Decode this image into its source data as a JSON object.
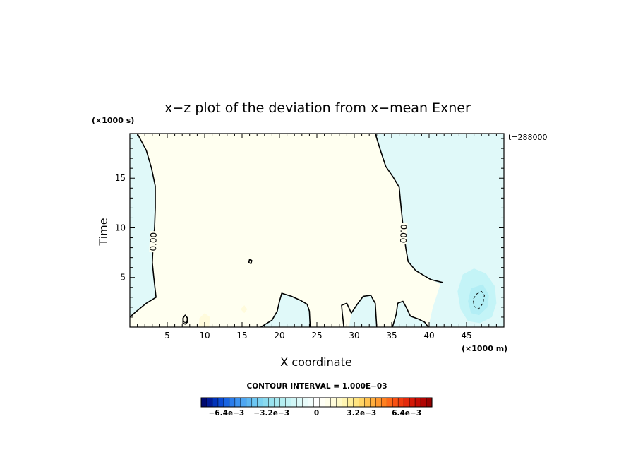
{
  "chart_data": {
    "type": "contour",
    "title": "x−z plot of the deviation from x−mean Exner",
    "xlabel": "X coordinate",
    "ylabel": "Time",
    "x_unit": "(×1000 m)",
    "y_unit": "(×1000 s)",
    "time_label": "t=288000",
    "xlim": [
      0,
      50
    ],
    "ylim": [
      0,
      19.5
    ],
    "x_ticks": [
      5,
      10,
      15,
      20,
      25,
      30,
      35,
      40,
      45
    ],
    "y_ticks": [
      5,
      10,
      15
    ],
    "contour_interval_text": "CONTOUR INTERVAL = 1.000E−03",
    "contour_labels": [
      {
        "text": "0.00",
        "x": 3.2,
        "y": 8.6,
        "angle": -88
      },
      {
        "text": "0.00",
        "x": 36.5,
        "y": 9.4,
        "angle": 92
      },
      {
        "text": "0",
        "x": 7.4,
        "y": 0.7,
        "angle": 0
      },
      {
        "text": "0",
        "x": 16.1,
        "y": 6.6,
        "angle": 0
      }
    ],
    "contours": [
      {
        "value": 0,
        "points": [
          [
            1,
            19.5
          ],
          [
            2.2,
            17.8
          ],
          [
            2.9,
            16
          ],
          [
            3.4,
            14.2
          ],
          [
            3.4,
            12
          ],
          [
            3.3,
            10
          ],
          [
            3.1,
            8.3
          ],
          [
            3,
            6.5
          ],
          [
            3.2,
            5
          ],
          [
            3.5,
            3
          ],
          [
            2.2,
            2.4
          ],
          [
            0.9,
            1.6
          ],
          [
            0,
            1
          ]
        ]
      },
      {
        "value": 0,
        "points": [
          [
            32.8,
            19.5
          ],
          [
            33.5,
            17.8
          ],
          [
            34.2,
            16.2
          ],
          [
            35.2,
            15.1
          ],
          [
            36,
            14.1
          ],
          [
            36.2,
            12.5
          ],
          [
            36.4,
            11
          ],
          [
            36.6,
            9.5
          ],
          [
            36.9,
            7.9
          ],
          [
            37.2,
            6.6
          ],
          [
            38.2,
            5.7
          ],
          [
            39.3,
            5.2
          ],
          [
            40.2,
            4.8
          ],
          [
            41.8,
            4.5
          ]
        ]
      },
      {
        "value": 0,
        "points": [
          [
            17.5,
            0
          ],
          [
            19,
            0.7
          ],
          [
            19.7,
            1.6
          ],
          [
            20,
            2.6
          ],
          [
            20.3,
            3.4
          ],
          [
            21.6,
            3.1
          ],
          [
            22.8,
            2.7
          ],
          [
            23.7,
            2.3
          ],
          [
            24,
            1.6
          ],
          [
            24.1,
            0
          ]
        ]
      },
      {
        "value": 0,
        "points": [
          [
            28.6,
            0
          ],
          [
            28.4,
            1.4
          ],
          [
            28.3,
            2.2
          ],
          [
            29,
            2.4
          ],
          [
            29.6,
            1.4
          ],
          [
            30.4,
            2.3
          ],
          [
            31.2,
            3.1
          ],
          [
            32.2,
            3.2
          ],
          [
            32.8,
            2.4
          ],
          [
            32.9,
            1.2
          ],
          [
            33,
            0
          ]
        ]
      },
      {
        "value": 0,
        "points": [
          [
            35.1,
            0
          ],
          [
            35.6,
            1.3
          ],
          [
            35.8,
            2.4
          ],
          [
            36.5,
            2.6
          ],
          [
            37,
            1.9
          ],
          [
            37.5,
            1.1
          ],
          [
            38.6,
            0.8
          ],
          [
            39.4,
            0.5
          ],
          [
            39.9,
            0
          ]
        ]
      },
      {
        "value": 0,
        "closed": true,
        "points": [
          [
            7.1,
            0.4
          ],
          [
            7.4,
            0.3
          ],
          [
            7.7,
            0.5
          ],
          [
            7.7,
            0.9
          ],
          [
            7.4,
            1.2
          ],
          [
            7.1,
            0.9
          ]
        ]
      },
      {
        "value": 0,
        "closed": true,
        "points": [
          [
            15.9,
            6.5
          ],
          [
            16.2,
            6.4
          ],
          [
            16.3,
            6.7
          ],
          [
            16,
            6.8
          ]
        ]
      },
      {
        "value": -0.001,
        "dashed": true,
        "closed": true,
        "points": [
          [
            46.3,
            3.3
          ],
          [
            47,
            3.6
          ],
          [
            47.4,
            3.2
          ],
          [
            47.2,
            2.4
          ],
          [
            46.6,
            1.8
          ],
          [
            46,
            2.1
          ],
          [
            45.9,
            2.8
          ]
        ]
      }
    ],
    "shaded_regions": [
      {
        "level": "weak_negative",
        "closed": true,
        "points": [
          [
            0,
            19.5
          ],
          [
            1,
            19.5
          ],
          [
            2.2,
            17.8
          ],
          [
            2.9,
            16
          ],
          [
            3.4,
            14.2
          ],
          [
            3.4,
            12
          ],
          [
            3.3,
            10
          ],
          [
            3.1,
            8.3
          ],
          [
            3,
            6.5
          ],
          [
            3.2,
            5
          ],
          [
            3.5,
            3
          ],
          [
            2.2,
            2.4
          ],
          [
            0.9,
            1.6
          ],
          [
            0,
            1
          ]
        ]
      },
      {
        "level": "weak_negative",
        "closed": true,
        "points": [
          [
            32.8,
            19.5
          ],
          [
            50,
            19.5
          ],
          [
            50,
            0
          ],
          [
            39.9,
            0
          ],
          [
            40.5,
            2
          ],
          [
            41.5,
            4.3
          ],
          [
            39.3,
            5.2
          ],
          [
            38.2,
            5.7
          ],
          [
            37.2,
            6.6
          ],
          [
            36.9,
            7.9
          ],
          [
            36.6,
            9.5
          ],
          [
            36.4,
            11
          ],
          [
            36.2,
            12.5
          ],
          [
            36,
            14.1
          ],
          [
            35.2,
            15.1
          ],
          [
            34.2,
            16.2
          ],
          [
            33.5,
            17.8
          ]
        ]
      },
      {
        "level": "weak_negative",
        "closed": true,
        "points": [
          [
            17.5,
            0
          ],
          [
            19,
            0.7
          ],
          [
            19.7,
            1.6
          ],
          [
            20,
            2.6
          ],
          [
            20.3,
            3.4
          ],
          [
            21.6,
            3.1
          ],
          [
            22.8,
            2.7
          ],
          [
            23.7,
            2.3
          ],
          [
            24,
            1.6
          ],
          [
            24.1,
            0
          ]
        ]
      },
      {
        "level": "weak_negative",
        "closed": true,
        "points": [
          [
            29.6,
            1.4
          ],
          [
            30.4,
            2.3
          ],
          [
            31.2,
            3.1
          ],
          [
            32.2,
            3.2
          ],
          [
            32.8,
            2.4
          ],
          [
            32.9,
            1.2
          ],
          [
            33,
            0
          ],
          [
            29.3,
            0
          ]
        ]
      },
      {
        "level": "weak_negative",
        "closed": true,
        "points": [
          [
            35.1,
            0
          ],
          [
            35.6,
            1.3
          ],
          [
            35.8,
            2.4
          ],
          [
            36.5,
            2.6
          ],
          [
            37,
            1.9
          ],
          [
            37.5,
            1.1
          ],
          [
            38.6,
            0.8
          ],
          [
            39.4,
            0.5
          ],
          [
            39.9,
            0
          ]
        ]
      },
      {
        "level": "moderate_negative",
        "closed": true,
        "points": [
          [
            44.5,
            5.3
          ],
          [
            46,
            5.9
          ],
          [
            47.6,
            5.4
          ],
          [
            48.8,
            4.1
          ],
          [
            49,
            2.4
          ],
          [
            48.4,
            1
          ],
          [
            46.8,
            0.4
          ],
          [
            45.2,
            0.6
          ],
          [
            44.2,
            1.8
          ],
          [
            43.8,
            3.6
          ]
        ]
      },
      {
        "level": "stronger_negative",
        "closed": true,
        "points": [
          [
            45.6,
            3.9
          ],
          [
            47.2,
            4.3
          ],
          [
            48,
            3.2
          ],
          [
            47.8,
            2
          ],
          [
            46.7,
            1.2
          ],
          [
            45.6,
            1.4
          ],
          [
            45.2,
            2.6
          ]
        ]
      },
      {
        "level": "weak_positive",
        "closed": true,
        "points": [
          [
            9.2,
            0
          ],
          [
            9.3,
            0.9
          ],
          [
            10,
            1.4
          ],
          [
            10.7,
            1
          ],
          [
            10.6,
            0
          ]
        ]
      },
      {
        "level": "weak_positive",
        "closed": true,
        "points": [
          [
            14.8,
            1.8
          ],
          [
            15.3,
            2.2
          ],
          [
            15.7,
            1.8
          ],
          [
            15.3,
            1.4
          ]
        ]
      }
    ],
    "colorbar": {
      "colors": [
        "#000a6e",
        "#001a96",
        "#0032b9",
        "#0a4ad2",
        "#1864e1",
        "#2a7ceb",
        "#3b92f0",
        "#4ea6f2",
        "#5cb6f2",
        "#6cc6f2",
        "#7cd2f0",
        "#8adaee",
        "#98e2ee",
        "#a6e8ef",
        "#b4eef1",
        "#c2f2f4",
        "#d0f6f6",
        "#dcf9f8",
        "#e8fbfa",
        "#f2fdfc",
        "#ffffff",
        "#fffff6",
        "#fffeea",
        "#fffcda",
        "#fffac8",
        "#fff5b2",
        "#ffee9a",
        "#ffe480",
        "#ffd466",
        "#ffc250",
        "#ffae3e",
        "#ff982e",
        "#ff8020",
        "#fd6818",
        "#f85012",
        "#f03a0e",
        "#e4280a",
        "#d41806",
        "#c40c04",
        "#b00402",
        "#960000"
      ],
      "tick_labels": [
        "−6.4e−3",
        "−3.2e−3",
        "0",
        "3.2e−3",
        "6.4e−3"
      ],
      "tick_values": [
        -0.0064,
        -0.0032,
        0,
        0.0032,
        0.0064
      ],
      "range": [
        -0.0082,
        0.0082
      ]
    },
    "colors": {
      "weak_negative": "#e0f9f9",
      "moderate_negative": "#c4f4f7",
      "stronger_negative": "#b2eef5",
      "weak_positive": "#fffbdc",
      "background_positive": "#fffff0"
    }
  }
}
